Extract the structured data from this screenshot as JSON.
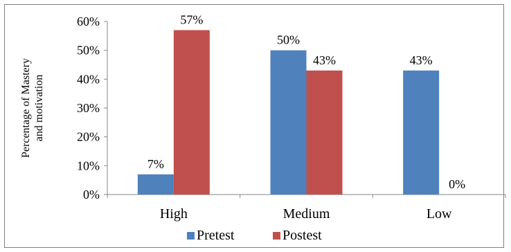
{
  "chart_data": {
    "type": "bar",
    "ylabel_lines": [
      "Percentage of Mastery",
      "and motivation"
    ],
    "categories": [
      "High",
      "Medium",
      "Low"
    ],
    "series": [
      {
        "name": "Pretest",
        "values": [
          7,
          50,
          43
        ],
        "labels": [
          "7%",
          "50%",
          "43%"
        ],
        "color": "#4f81bd"
      },
      {
        "name": "Postest",
        "values": [
          57,
          43,
          0
        ],
        "labels": [
          "57%",
          "43%",
          "0%"
        ],
        "color": "#c0504d"
      }
    ],
    "ylim": [
      0,
      60
    ],
    "yticks": [
      0,
      10,
      20,
      30,
      40,
      50,
      60
    ],
    "ytick_labels": [
      "0%",
      "10%",
      "20%",
      "30%",
      "40%",
      "50%",
      "60%"
    ],
    "grid": false,
    "legend": "bottom"
  }
}
